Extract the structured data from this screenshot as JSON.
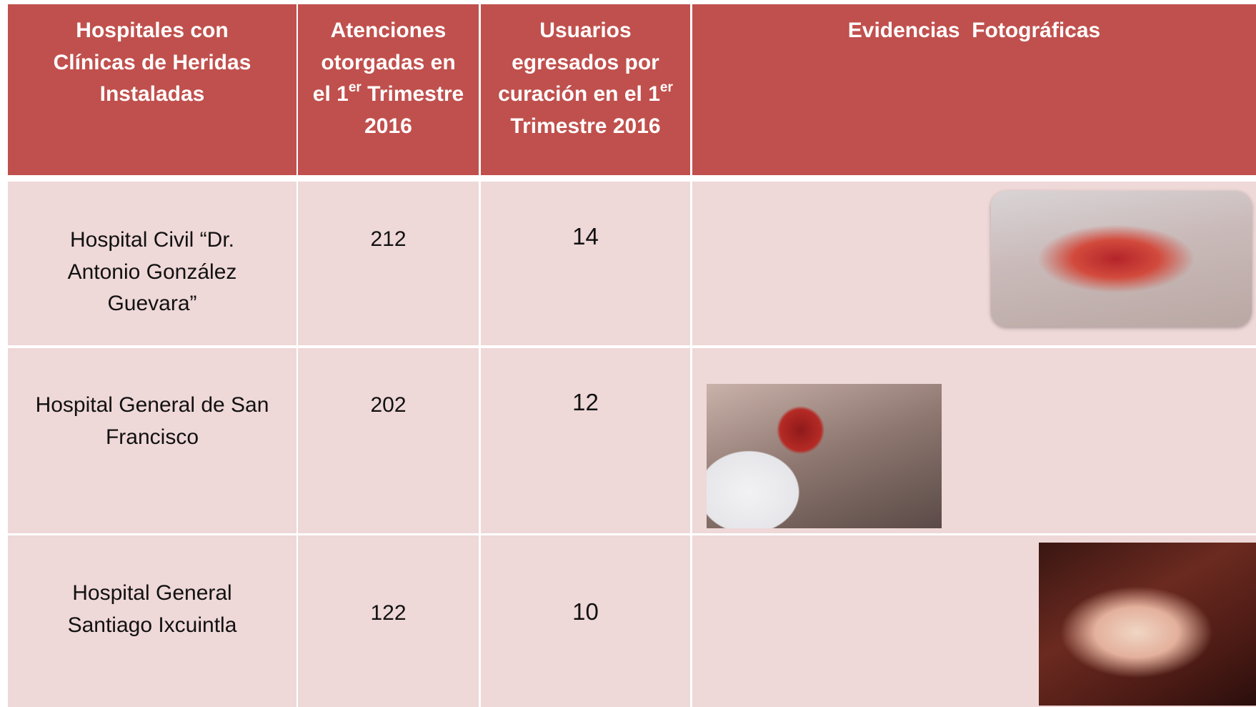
{
  "table": {
    "header": [
      {
        "text": "Hospitales con Clínicas de Heridas Instaladas"
      },
      {
        "text": "Atenciones otorgadas en el 1",
        "sup": "er",
        "after": "Trimestre 2016"
      },
      {
        "text": "Usuarios egresados por curación en el 1",
        "sup": "er",
        "after": "Trimestre 2016"
      },
      {
        "text": "Evidencias  Fotográficas"
      }
    ],
    "rows": [
      [
        "Hospital Civil “Dr. Antonio González Guevara”",
        212,
        14
      ],
      [
        "Hospital General de San Francisco",
        202,
        12
      ],
      [
        "Hospital General Santiago Ixcuintla",
        122,
        10
      ]
    ]
  }
}
